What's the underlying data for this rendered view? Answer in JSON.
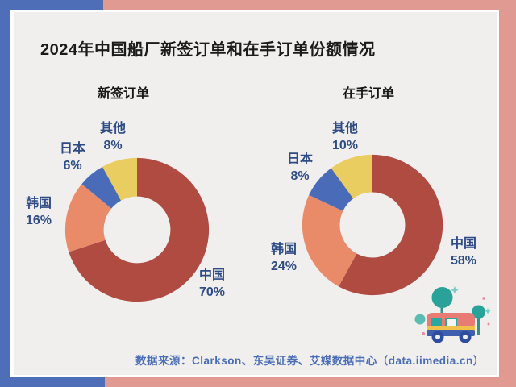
{
  "title": "2024年中国船厂新签订单和在手订单份额情况",
  "colors": {
    "frame_blue": "#4e6eb8",
    "frame_pink": "#e09a92",
    "card_bg": "#f0efed",
    "title_text": "#1b1b1b",
    "label_navy": "#2e4b85",
    "footer_blue": "#4a6db8",
    "china_red": "#b04b42",
    "korea_salmon": "#e98a69",
    "japan_blue": "#4a6cb8",
    "other_yellow": "#e9cd60",
    "teal_accent": "#29a39a"
  },
  "chart_data": [
    {
      "type": "pie",
      "title": "新签订单",
      "labels": [
        "中国",
        "韩国",
        "日本",
        "其他"
      ],
      "values": [
        70,
        16,
        6,
        8
      ],
      "display_values": [
        "70%",
        "16%",
        "6%",
        "8%"
      ],
      "unit": "%",
      "colors": [
        "#b04b42",
        "#e98a69",
        "#4a6cb8",
        "#e9cd60"
      ],
      "donut": true,
      "start_angle": "top",
      "direction": "clockwise",
      "legend_position": "around-labels"
    },
    {
      "type": "pie",
      "title": "在手订单",
      "labels": [
        "中国",
        "韩国",
        "日本",
        "其他"
      ],
      "values": [
        58,
        24,
        8,
        10
      ],
      "display_values": [
        "58%",
        "24%",
        "8%",
        "10%"
      ],
      "unit": "%",
      "colors": [
        "#b04b42",
        "#e98a69",
        "#4a6cb8",
        "#e9cd60"
      ],
      "donut": true,
      "start_angle": "top",
      "direction": "clockwise",
      "legend_position": "around-labels"
    }
  ],
  "footer": {
    "source": "数据来源：Clarkson、东吴证券、艾媒数据中心（data.iimedia.cn）"
  },
  "decor": {
    "illustration": "teal-trees-and-rainbow-truck"
  }
}
